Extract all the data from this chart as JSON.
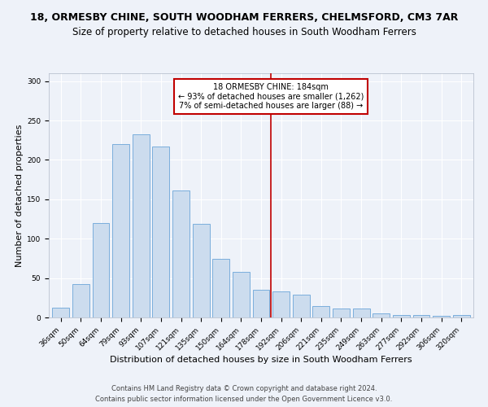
{
  "title": "18, ORMESBY CHINE, SOUTH WOODHAM FERRERS, CHELMSFORD, CM3 7AR",
  "subtitle": "Size of property relative to detached houses in South Woodham Ferrers",
  "xlabel": "Distribution of detached houses by size in South Woodham Ferrers",
  "ylabel": "Number of detached properties",
  "categories": [
    "36sqm",
    "50sqm",
    "64sqm",
    "79sqm",
    "93sqm",
    "107sqm",
    "121sqm",
    "135sqm",
    "150sqm",
    "164sqm",
    "178sqm",
    "192sqm",
    "206sqm",
    "221sqm",
    "235sqm",
    "249sqm",
    "263sqm",
    "277sqm",
    "292sqm",
    "306sqm",
    "320sqm"
  ],
  "values": [
    12,
    42,
    120,
    220,
    233,
    217,
    161,
    119,
    74,
    58,
    35,
    33,
    29,
    14,
    11,
    11,
    5,
    3,
    3,
    2,
    3
  ],
  "bar_color": "#ccdcee",
  "bar_edge_color": "#7aaedc",
  "vline_x": 10.5,
  "vline_color": "#c00000",
  "annotation_line1": "18 ORMESBY CHINE: 184sqm",
  "annotation_line2": "← 93% of detached houses are smaller (1,262)",
  "annotation_line3": "7% of semi-detached houses are larger (88) →",
  "annotation_box_color": "#c00000",
  "ylim": [
    0,
    310
  ],
  "yticks": [
    0,
    50,
    100,
    150,
    200,
    250,
    300
  ],
  "footer": "Contains HM Land Registry data © Crown copyright and database right 2024.\nContains public sector information licensed under the Open Government Licence v3.0.",
  "bg_color": "#eef2f9",
  "title_fontsize": 9,
  "subtitle_fontsize": 8.5,
  "xlabel_fontsize": 8,
  "ylabel_fontsize": 8,
  "tick_fontsize": 6.5,
  "footer_fontsize": 6
}
